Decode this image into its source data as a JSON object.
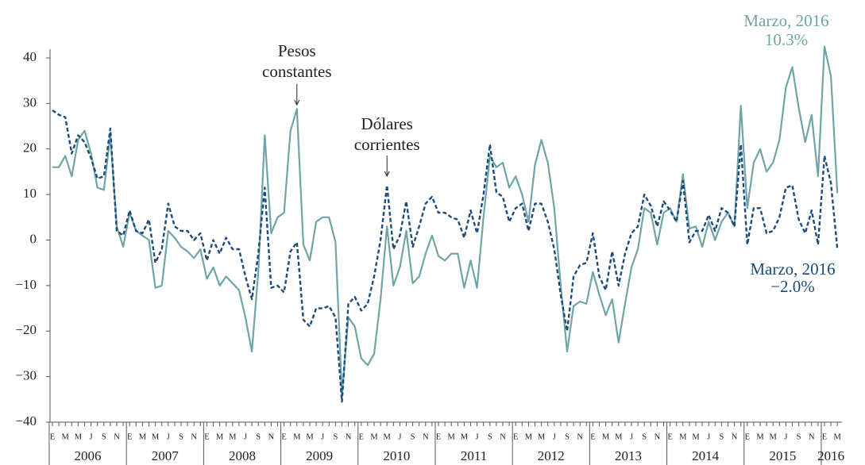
{
  "chart_data": {
    "type": "line",
    "categories": [
      "E",
      null,
      "M",
      null,
      "M",
      null,
      "J",
      null,
      "S",
      null,
      "N",
      null,
      "E",
      null,
      "M",
      null,
      "M",
      null,
      "J",
      null,
      "S",
      null,
      "N",
      null,
      "E",
      null,
      "M",
      null,
      "M",
      null,
      "J",
      null,
      "S",
      null,
      "N",
      null,
      "E",
      null,
      "M",
      null,
      "M",
      null,
      "J",
      null,
      "S",
      null,
      "N",
      null,
      "E",
      null,
      "M",
      null,
      "M",
      null,
      "J",
      null,
      "S",
      null,
      "N",
      null,
      "E",
      null,
      "M",
      null,
      "M",
      null,
      "J",
      null,
      "S",
      null,
      "N",
      null,
      "E",
      null,
      "M",
      null,
      "M",
      null,
      "J",
      null,
      "S",
      null,
      "N",
      null,
      "E",
      null,
      "M",
      null,
      "M",
      null,
      "J",
      null,
      "S",
      null,
      "N",
      null,
      "E",
      null,
      "M",
      null,
      "M",
      null,
      "J",
      null,
      "S",
      null,
      "N",
      null,
      "E",
      null,
      "M",
      null,
      "M",
      null,
      "J",
      null,
      "S",
      null,
      "N",
      null,
      "E",
      null,
      "M"
    ],
    "years": [
      "2006",
      "2007",
      "2008",
      "2009",
      "2010",
      "2011",
      "2012",
      "2013",
      "2014",
      "2015",
      "2016"
    ],
    "ylim": [
      -40,
      40
    ],
    "yticks": [
      {
        "value": -40,
        "label": "−40"
      },
      {
        "value": -30,
        "label": "−30"
      },
      {
        "value": -20,
        "label": "−20"
      },
      {
        "value": -10,
        "label": "−10"
      },
      0,
      10,
      20,
      30,
      40
    ],
    "series": [
      {
        "name": "Pesos constantes",
        "color": "#6fa5a6",
        "dash": false,
        "end_label": {
          "date": "Marzo, 2016",
          "value_label": "10.3%"
        },
        "values": [
          16,
          16,
          18.5,
          14,
          22,
          24,
          19,
          11.5,
          11,
          23,
          3,
          -1.5,
          6,
          2,
          1,
          0,
          -10.5,
          -10,
          2,
          0.5,
          -1.5,
          -2.5,
          -4,
          -2,
          -8.5,
          -6,
          -10,
          -8,
          -9.5,
          -11,
          -17,
          -24.5,
          -7,
          23,
          1.5,
          5,
          6,
          24,
          28.8,
          -1,
          -4.5,
          4,
          5,
          5,
          -0.5,
          -34,
          -17,
          -19,
          -26,
          -27.5,
          -25,
          -13,
          3,
          -10,
          -6,
          2,
          -9.5,
          -8,
          -3,
          1,
          -3.5,
          -4.5,
          -3,
          -3,
          -10.5,
          -4.5,
          -10.5,
          5,
          18.5,
          16,
          17,
          11.5,
          14,
          10,
          4,
          16.5,
          22,
          17,
          7,
          -10,
          -24.5,
          -14.5,
          -13.5,
          -14,
          -7,
          -12,
          -16.5,
          -13,
          -22.5,
          -14,
          -6,
          -2,
          7,
          6,
          -1,
          6,
          7,
          4,
          14.5,
          2.5,
          3,
          -1.5,
          4,
          0,
          4,
          6,
          3,
          29.5,
          7,
          17,
          20,
          15,
          17,
          22,
          33.5,
          38,
          29,
          21.5,
          27.5,
          14,
          42.5,
          36,
          10.3
        ]
      },
      {
        "name": "Dólares corrientes",
        "color": "#1c4b7b",
        "dash": true,
        "end_label": {
          "date": "Marzo, 2016",
          "value_label": "−2.0%"
        },
        "values": [
          28.5,
          27.5,
          27,
          19,
          23,
          21.5,
          18,
          13.5,
          14,
          24.5,
          2,
          1,
          6.5,
          2,
          1.5,
          4.5,
          -5,
          -2,
          8,
          3,
          2,
          2,
          0,
          1.5,
          -4.5,
          0,
          -3,
          0.5,
          -2,
          -2,
          -8,
          -13,
          -3,
          11.5,
          -10.5,
          -10,
          -11.5,
          -2.5,
          -0.5,
          -17.5,
          -19,
          -15,
          -15,
          -14.5,
          -17,
          -35.5,
          -14,
          -12.5,
          -15.5,
          -14,
          -8,
          0,
          12,
          -2,
          1,
          8.5,
          -1.5,
          3,
          8,
          9.5,
          6,
          6,
          5,
          4.5,
          0.5,
          6.5,
          1.5,
          10,
          21,
          10.5,
          9.5,
          4,
          7,
          8,
          2,
          8,
          8,
          4,
          -2,
          -12,
          -20,
          -8,
          -5.5,
          -5,
          1.5,
          -8,
          -11,
          -2.5,
          -10,
          -3,
          1.5,
          3,
          10,
          7.5,
          3,
          8.5,
          6.5,
          4,
          13,
          -0.5,
          2,
          2,
          5.5,
          2,
          7,
          6,
          3,
          21,
          -1,
          7,
          7,
          1.5,
          2,
          5,
          11.5,
          12,
          4.5,
          1.5,
          6.5,
          -1,
          18.5,
          12.5,
          -2.0
        ]
      }
    ]
  }
}
